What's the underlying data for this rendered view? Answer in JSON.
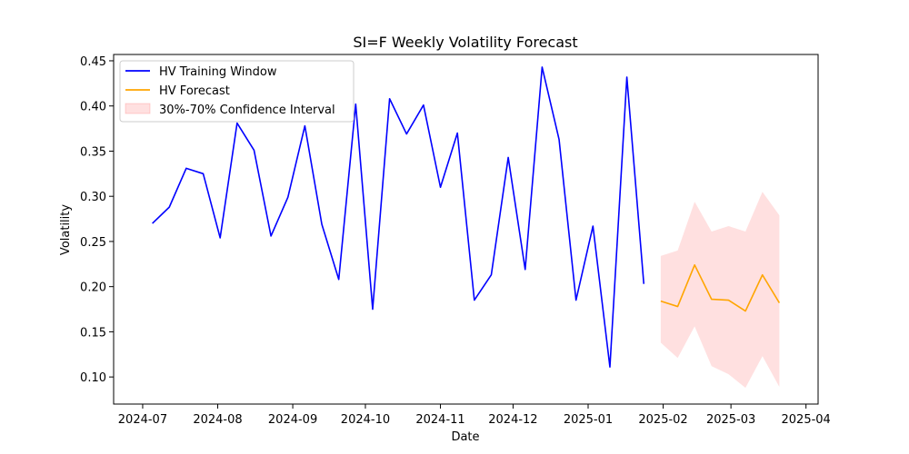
{
  "chart_data": {
    "type": "line",
    "title": "SI=F Weekly Volatility Forecast",
    "xlabel": "Date",
    "ylabel": "Volatility",
    "x_ticks": [
      "2024-07",
      "2024-08",
      "2024-09",
      "2024-10",
      "2024-11",
      "2024-12",
      "2025-01",
      "2025-02",
      "2025-03",
      "2025-04"
    ],
    "y_ticks": [
      "0.10",
      "0.15",
      "0.20",
      "0.25",
      "0.30",
      "0.35",
      "0.40",
      "0.45"
    ],
    "xlim": [
      "2024-06-19",
      "2025-04-06"
    ],
    "ylim": [
      0.07,
      0.457
    ],
    "grid": false,
    "legend_position": "top-left",
    "series": [
      {
        "name": "HV Training Window",
        "color": "#0000ff",
        "style": "line",
        "x": [
          "2024-07-05",
          "2024-07-12",
          "2024-07-19",
          "2024-07-26",
          "2024-08-02",
          "2024-08-09",
          "2024-08-16",
          "2024-08-23",
          "2024-08-30",
          "2024-09-06",
          "2024-09-13",
          "2024-09-20",
          "2024-09-27",
          "2024-10-04",
          "2024-10-11",
          "2024-10-18",
          "2024-10-25",
          "2024-11-01",
          "2024-11-08",
          "2024-11-15",
          "2024-11-22",
          "2024-11-29",
          "2024-12-06",
          "2024-12-13",
          "2024-12-20",
          "2024-12-27",
          "2025-01-03",
          "2025-01-10",
          "2025-01-17",
          "2025-01-24"
        ],
        "y": [
          0.27,
          0.288,
          0.331,
          0.325,
          0.254,
          0.381,
          0.351,
          0.256,
          0.299,
          0.378,
          0.269,
          0.208,
          0.402,
          0.175,
          0.408,
          0.369,
          0.401,
          0.31,
          0.37,
          0.185,
          0.213,
          0.343,
          0.219,
          0.443,
          0.363,
          0.185,
          0.267,
          0.111,
          0.432,
          0.203
        ]
      },
      {
        "name": "HV Forecast",
        "color": "#ffa500",
        "style": "line",
        "x": [
          "2025-01-31",
          "2025-02-07",
          "2025-02-14",
          "2025-02-21",
          "2025-02-28",
          "2025-03-07",
          "2025-03-14",
          "2025-03-21"
        ],
        "y": [
          0.184,
          0.178,
          0.224,
          0.186,
          0.185,
          0.173,
          0.213,
          0.182
        ]
      },
      {
        "name": "30%-70% Confidence Interval",
        "color": "#ff0000",
        "style": "band",
        "opacity": 0.12,
        "x": [
          "2025-01-31",
          "2025-02-07",
          "2025-02-14",
          "2025-02-21",
          "2025-02-28",
          "2025-03-07",
          "2025-03-14",
          "2025-03-21"
        ],
        "lower": [
          0.138,
          0.121,
          0.156,
          0.112,
          0.103,
          0.088,
          0.123,
          0.089
        ],
        "upper": [
          0.234,
          0.24,
          0.294,
          0.261,
          0.267,
          0.261,
          0.305,
          0.279
        ]
      }
    ]
  }
}
